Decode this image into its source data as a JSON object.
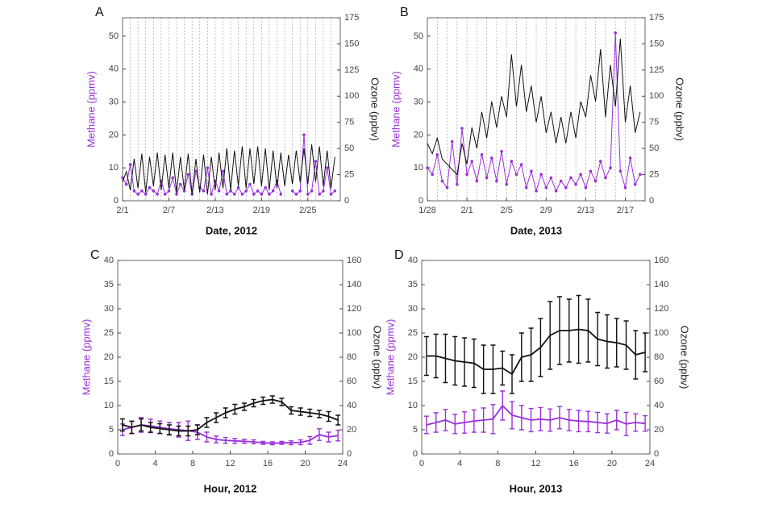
{
  "chart_data": [
    {
      "type": "line",
      "label": "A",
      "xlabel": "Date, 2012",
      "ylabel": "Methane (ppmv)",
      "y2label": "Ozone (ppbv)",
      "xlim": [
        1,
        29.2
      ],
      "ylim": [
        0,
        55.6
      ],
      "y2lim": [
        0,
        175
      ],
      "xticks": [
        {
          "value": 1,
          "label": "2/1"
        },
        {
          "value": 7,
          "label": "2/7"
        },
        {
          "value": 13,
          "label": "2/13"
        },
        {
          "value": 19,
          "label": "2/19"
        },
        {
          "value": 25,
          "label": "2/25"
        }
      ],
      "xminorticks": [
        2,
        3,
        4,
        5,
        6,
        7,
        8,
        9,
        10,
        11,
        12,
        13,
        14,
        15,
        16,
        17,
        18,
        19,
        20,
        21,
        22,
        23,
        24,
        25,
        26,
        27,
        28
      ],
      "yticks": [
        0,
        10,
        20,
        30,
        40,
        50
      ],
      "y2ticks": [
        0,
        25,
        50,
        75,
        100,
        125,
        150,
        175
      ],
      "x": [
        1,
        1.5,
        2,
        2.5,
        3,
        3.5,
        4,
        4.5,
        5,
        5.5,
        6,
        6.5,
        7,
        7.5,
        8,
        8.5,
        9,
        9.5,
        10,
        10.5,
        11,
        11.5,
        12,
        12.5,
        13,
        13.5,
        14,
        14.5,
        15,
        15.5,
        16,
        16.5,
        17,
        17.5,
        18,
        18.5,
        19,
        19.5,
        20,
        20.5,
        21,
        21.5,
        22,
        22.5,
        23,
        23.5,
        24,
        24.5,
        25,
        25.5,
        26,
        26.5,
        27,
        27.5,
        28,
        28.5
      ],
      "series": [
        {
          "color": "#9b30d9",
          "axis": "y",
          "markers": true,
          "values": [
            7,
            5,
            11,
            3,
            2,
            3,
            2,
            4,
            3,
            2,
            6,
            2,
            3,
            7,
            2,
            5,
            3,
            8,
            2,
            9,
            4,
            3,
            10,
            2,
            6,
            3,
            9,
            2,
            3,
            2,
            4,
            2,
            3,
            5,
            2,
            3,
            2,
            4,
            2,
            3,
            6,
            2,
            null,
            null,
            3,
            2,
            3,
            20,
            2,
            3,
            12,
            2,
            3,
            10,
            2,
            3
          ]
        },
        {
          "color": "#111111",
          "axis": "y2",
          "values": [
            18,
            28,
            10,
            40,
            12,
            45,
            8,
            42,
            14,
            46,
            10,
            44,
            12,
            46,
            8,
            42,
            10,
            45,
            6,
            40,
            8,
            44,
            6,
            42,
            10,
            46,
            12,
            50,
            10,
            48,
            14,
            52,
            12,
            50,
            16,
            52,
            14,
            50,
            10,
            48,
            12,
            46,
            14,
            44,
            16,
            48,
            18,
            50,
            16,
            54,
            18,
            52,
            14,
            48,
            12,
            42
          ]
        }
      ]
    },
    {
      "type": "line",
      "label": "B",
      "xlabel": "Date, 2013",
      "ylabel": "Methane (ppmv)",
      "y2label": "Ozone (ppbv)",
      "xlim": [
        28,
        50
      ],
      "ylim": [
        0,
        55.6
      ],
      "y2lim": [
        0,
        175
      ],
      "xticks": [
        {
          "value": 28,
          "label": "1/28"
        },
        {
          "value": 32,
          "label": "2/1"
        },
        {
          "value": 36,
          "label": "2/5"
        },
        {
          "value": 40,
          "label": "2/9"
        },
        {
          "value": 44,
          "label": "2/13"
        },
        {
          "value": 48,
          "label": "2/17"
        }
      ],
      "xminorticks": [
        29,
        30,
        31,
        32,
        33,
        34,
        35,
        36,
        37,
        38,
        39,
        40,
        41,
        42,
        43,
        44,
        45,
        46,
        47,
        48,
        49
      ],
      "yticks": [
        0,
        10,
        20,
        30,
        40,
        50
      ],
      "y2ticks": [
        0,
        25,
        50,
        75,
        100,
        125,
        150,
        175
      ],
      "x": [
        28,
        28.5,
        29,
        29.5,
        30,
        30.5,
        31,
        31.5,
        32,
        32.5,
        33,
        33.5,
        34,
        34.5,
        35,
        35.5,
        36,
        36.5,
        37,
        37.5,
        38,
        38.5,
        39,
        39.5,
        40,
        40.5,
        41,
        41.5,
        42,
        42.5,
        43,
        43.5,
        44,
        44.5,
        45,
        45.5,
        46,
        46.5,
        47,
        47.5,
        48,
        48.5,
        49,
        49.5
      ],
      "series": [
        {
          "color": "#9b30d9",
          "axis": "y",
          "markers": true,
          "values": [
            10,
            8,
            14,
            6,
            4,
            18,
            5,
            22,
            8,
            12,
            6,
            14,
            7,
            13,
            6,
            15,
            5,
            12,
            8,
            11,
            4,
            9,
            3,
            8,
            4,
            7,
            3,
            6,
            4,
            7,
            5,
            8,
            4,
            9,
            6,
            12,
            7,
            10,
            51,
            9,
            4,
            13,
            5,
            8
          ]
        },
        {
          "color": "#111111",
          "axis": "y2",
          "values": [
            55,
            45,
            60,
            40,
            35,
            30,
            25,
            55,
            35,
            70,
            50,
            85,
            60,
            95,
            70,
            100,
            80,
            140,
            90,
            130,
            85,
            110,
            75,
            100,
            65,
            85,
            55,
            80,
            55,
            85,
            60,
            95,
            80,
            120,
            95,
            145,
            80,
            130,
            90,
            155,
            75,
            110,
            65,
            85
          ]
        }
      ]
    },
    {
      "type": "line",
      "label": "C",
      "xlabel": "Hour, 2012",
      "ylabel": "Methane (ppmv)",
      "y2label": "Ozone (ppbv)",
      "xlim": [
        0,
        24
      ],
      "ylim": [
        0,
        40
      ],
      "y2lim": [
        0,
        160
      ],
      "xticks": [
        0,
        4,
        8,
        12,
        16,
        20,
        24
      ],
      "yticks": [
        0,
        5,
        10,
        15,
        20,
        25,
        30,
        35,
        40
      ],
      "y2ticks": [
        0,
        20,
        40,
        60,
        80,
        100,
        120,
        140,
        160
      ],
      "x": [
        0.5,
        1.5,
        2.5,
        3.5,
        4.5,
        5.5,
        6.5,
        7.5,
        8.5,
        9.5,
        10.5,
        11.5,
        12.5,
        13.5,
        14.5,
        15.5,
        16.5,
        17.5,
        18.5,
        19.5,
        20.5,
        21.5,
        22.5,
        23.5
      ],
      "series": [
        {
          "color": "#9b30d9",
          "axis": "y",
          "values": [
            5,
            5.5,
            6,
            5.8,
            5.5,
            5.2,
            5,
            4.8,
            4.5,
            3.5,
            3,
            2.8,
            2.7,
            2.6,
            2.5,
            2.3,
            2.2,
            2.3,
            2.3,
            2.4,
            2.8,
            4,
            3.5,
            3.8
          ],
          "errors": [
            1.2,
            1.3,
            1.5,
            1.4,
            1.3,
            1.3,
            1.5,
            2,
            1.5,
            1,
            0.7,
            0.6,
            0.5,
            0.4,
            0.4,
            0.3,
            0.3,
            0.3,
            0.4,
            0.5,
            0.8,
            1.2,
            1,
            1.1
          ]
        },
        {
          "color": "#111111",
          "axis": "y2",
          "values": [
            24,
            22,
            24,
            22,
            21,
            20,
            19,
            19,
            20,
            26,
            30,
            34,
            37,
            39,
            42,
            44,
            45,
            43,
            36,
            35,
            34,
            33,
            31,
            28
          ],
          "errors": [
            5,
            5,
            5,
            4,
            4,
            4,
            4,
            4,
            4,
            4,
            4,
            4,
            4,
            3,
            3,
            3,
            3,
            3,
            3,
            3,
            3,
            3,
            4,
            4
          ]
        }
      ]
    },
    {
      "type": "line",
      "label": "D",
      "xlabel": "Hour, 2013",
      "ylabel": "Methane (ppmv)",
      "y2label": "Ozone (ppbv)",
      "xlim": [
        0,
        24
      ],
      "ylim": [
        0,
        40
      ],
      "y2lim": [
        0,
        160
      ],
      "xticks": [
        0,
        4,
        8,
        12,
        16,
        20,
        24
      ],
      "yticks": [
        0,
        5,
        10,
        15,
        20,
        25,
        30,
        35,
        40
      ],
      "y2ticks": [
        0,
        20,
        40,
        60,
        80,
        100,
        120,
        140,
        160
      ],
      "x": [
        0.5,
        1.5,
        2.5,
        3.5,
        4.5,
        5.5,
        6.5,
        7.5,
        8.5,
        9.5,
        10.5,
        11.5,
        12.5,
        13.5,
        14.5,
        15.5,
        16.5,
        17.5,
        18.5,
        19.5,
        20.5,
        21.5,
        22.5,
        23.5
      ],
      "series": [
        {
          "color": "#9b30d9",
          "axis": "y",
          "values": [
            6,
            6.5,
            7,
            6.2,
            6.5,
            6.8,
            7,
            7.2,
            10,
            8,
            7.5,
            7,
            7.2,
            7,
            7.5,
            7,
            6.8,
            6.7,
            6.5,
            6.3,
            7,
            6.2,
            6.5,
            6.3
          ],
          "errors": [
            1.8,
            2,
            2.2,
            2,
            2.2,
            2.3,
            2.5,
            3,
            3,
            2.8,
            2.5,
            2.4,
            2.4,
            2.3,
            2.3,
            2.2,
            2.2,
            2.1,
            2.1,
            2,
            2,
            2.4,
            1.8,
            1.6
          ]
        },
        {
          "color": "#111111",
          "axis": "y2",
          "values": [
            81,
            81,
            79,
            77,
            76,
            75,
            70,
            70,
            71,
            66,
            80,
            82,
            88,
            98,
            102,
            102,
            103,
            102,
            95,
            93,
            92,
            90,
            82,
            84
          ],
          "errors": [
            16,
            18,
            20,
            20,
            20,
            20,
            20,
            20,
            14,
            16,
            20,
            22,
            24,
            28,
            28,
            26,
            28,
            26,
            22,
            22,
            20,
            20,
            20,
            16
          ]
        }
      ]
    }
  ]
}
